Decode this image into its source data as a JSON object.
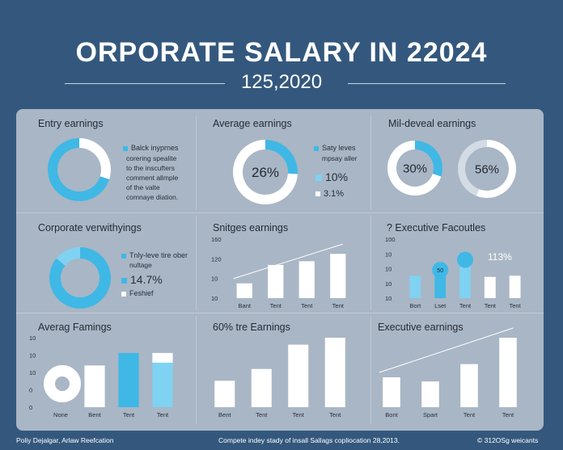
{
  "header": {
    "title": "ORPORATE SALARY IN  22024",
    "subtitle": "125,2020"
  },
  "colors": {
    "background": "#34587d",
    "panel": "#a9b6c5",
    "blue": "#3fb8e6",
    "light_blue": "#7fd2f1",
    "white": "#ffffff"
  },
  "cards": {
    "entry": {
      "title": "Entry earnings",
      "legend_title": "Balck inyprnes",
      "note": [
        "corering spealite",
        "to the inscufters",
        "comment allmple",
        "of the valte",
        "comnaye diation."
      ]
    },
    "average": {
      "title": "Average earnings",
      "center": "26%",
      "legend_title": "Saty leves",
      "legend_sub": "mpsay aller",
      "item1": "10%",
      "item2": "3.1%"
    },
    "mid": {
      "title": "Mil-deveal earnings",
      "donut1_label": "30%",
      "donut2_label": "56%"
    },
    "corporate": {
      "title": "Corporate verwithyings",
      "legend_line1": "Tnly-leve tire ober",
      "legend_line2": "nultage",
      "value": "14.7%",
      "item": "Feshief"
    },
    "salaries": {
      "title": "Snitges earnings"
    },
    "executive_top": {
      "title": "? Executive Facoutles",
      "annotation": "113%",
      "bubble": "50"
    },
    "avg_bottom": {
      "title": "Averag Famings"
    },
    "tre": {
      "title": "60% tre Earnings"
    },
    "exec_bottom": {
      "title": "Executive earnings"
    }
  },
  "footer": {
    "left": "Poliy Dejalgar, Arlaw Reefcation",
    "center": "Compete indey stady of insall Sallags copliocation 28,2013.",
    "right": "© 312OSg weicants"
  },
  "chart_data": [
    {
      "id": "entry",
      "type": "pie",
      "title": "Entry earnings",
      "slices": [
        {
          "value": 30,
          "color": "#ffffff"
        },
        {
          "value": 70,
          "color": "#3fb8e6"
        }
      ]
    },
    {
      "id": "average",
      "type": "pie",
      "title": "Average earnings",
      "slices": [
        {
          "value": 26,
          "label": "26%",
          "color": "#3fb8e6"
        },
        {
          "value": 74,
          "color": "#ffffff"
        }
      ]
    },
    {
      "id": "mid1",
      "type": "pie",
      "title": "Mil-deveal earnings",
      "slices": [
        {
          "value": 30,
          "label": "30%",
          "color": "#3fb8e6"
        },
        {
          "value": 70,
          "color": "#ffffff"
        }
      ]
    },
    {
      "id": "mid2",
      "type": "pie",
      "slices": [
        {
          "value": 56,
          "label": "56%",
          "color": "#ffffff"
        },
        {
          "value": 44,
          "color": "#d3dbe5"
        }
      ]
    },
    {
      "id": "corporate",
      "type": "pie",
      "title": "Corporate verwithyings",
      "slices": [
        {
          "value": 86,
          "color": "#3fb8e6"
        },
        {
          "value": 14,
          "color": "#7fd2f1"
        }
      ]
    },
    {
      "id": "salaries",
      "type": "bar",
      "title": "Snitges earnings",
      "y_ticks": [
        "160",
        "120",
        "10",
        "10"
      ],
      "ylim": [
        0,
        160
      ],
      "categories": [
        "Bant",
        "Tent",
        "Tent",
        "Tent"
      ],
      "values": [
        40,
        90,
        100,
        120
      ],
      "trend": true
    },
    {
      "id": "executive_top",
      "type": "bar",
      "title": "? Executive Facoutles",
      "y_ticks": [
        "100",
        "10",
        "10",
        "10",
        "10"
      ],
      "ylim": [
        0,
        100
      ],
      "categories": [
        "Bort",
        "Lset",
        "Tent",
        "Tent",
        "Tent"
      ],
      "values": [
        38,
        45,
        65,
        36,
        38
      ],
      "colors": [
        "#7fd2f1",
        "#3fb8e6",
        "#7fd2f1",
        "#ffffff",
        "#ffffff"
      ]
    },
    {
      "id": "avg_bottom",
      "type": "bar",
      "title": "Averag Famings",
      "y_ticks": [
        "10",
        "10",
        "10",
        "0",
        "0"
      ],
      "ylim": [
        0,
        100
      ],
      "categories": [
        "None",
        "Bent",
        "Tent",
        "Tent"
      ],
      "values": [
        88,
        60,
        78,
        78
      ],
      "colors": [
        "#ffffff",
        "#ffffff",
        "#3fb8e6",
        "#7fd2f1"
      ]
    },
    {
      "id": "tre",
      "type": "bar",
      "title": "60% tre Earnings",
      "ylim": [
        0,
        100
      ],
      "categories": [
        "Bent",
        "Tent",
        "Tent",
        "Tent"
      ],
      "values": [
        38,
        55,
        90,
        100
      ]
    },
    {
      "id": "exec_bottom",
      "type": "bar",
      "title": "Executive earnings",
      "ylim": [
        0,
        100
      ],
      "categories": [
        "Bont",
        "Spart",
        "Tent",
        "Tent"
      ],
      "values": [
        43,
        37,
        62,
        100
      ],
      "trend": true
    }
  ]
}
